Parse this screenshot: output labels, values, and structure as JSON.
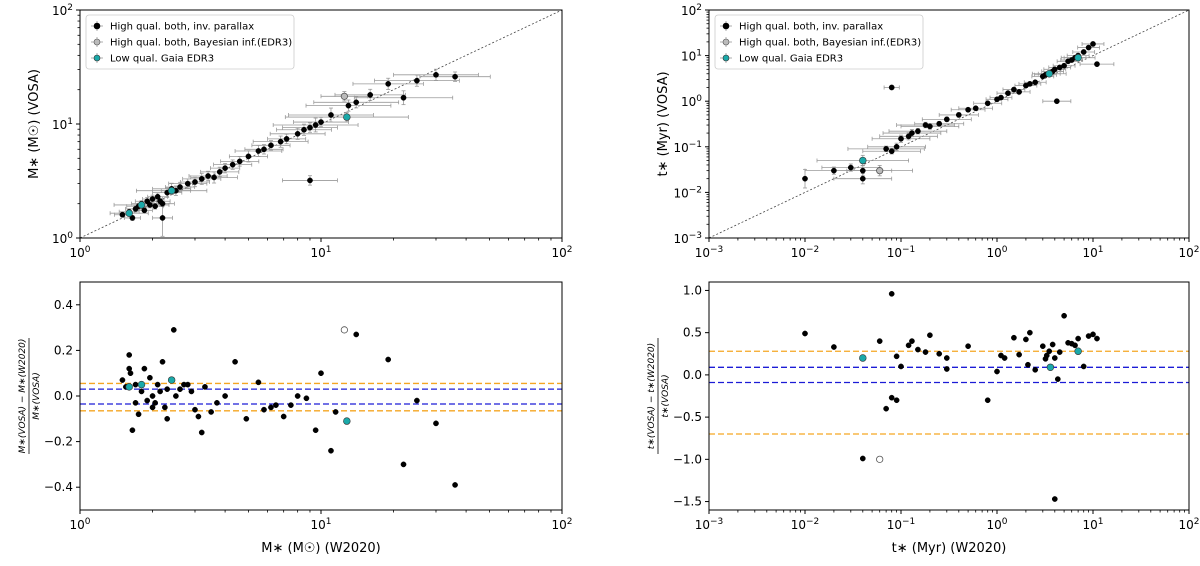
{
  "colors": {
    "high_qual": "#000000",
    "bayesian_face": "#bbbbbb",
    "low_qual_face": "#1aa9a9",
    "errbar": "#9a9a9a",
    "orange": "#f5a623",
    "blue": "#1c1cd6",
    "diagonal": "#444444"
  },
  "chart_data": [
    {
      "id": "mass_vs",
      "type": "scatter",
      "xscale": "log",
      "yscale": "log",
      "xlim": [
        1,
        100
      ],
      "ylim": [
        1,
        100
      ],
      "xlabel": "",
      "ylabel": "M∗ (M☉) (VOSA)",
      "xticklabels": [
        "10^0",
        "10^1",
        "10^2"
      ],
      "yticklabels": [
        "10^0",
        "10^1",
        "10^2"
      ],
      "diagonal": true,
      "legend": {
        "position": "top-left",
        "entries": [
          {
            "label": "High qual. both, inv. parallax",
            "marker": "filled-black"
          },
          {
            "label": "High qual. both, Bayesian inf.(EDR3)",
            "marker": "open-grey"
          },
          {
            "label": "Low qual. Gaia EDR3",
            "marker": "filled-teal"
          }
        ]
      },
      "series": [
        {
          "name": "High qual. both, inv. parallax",
          "style": "black",
          "x": [
            1.5,
            1.6,
            1.65,
            1.7,
            1.75,
            1.8,
            1.85,
            1.9,
            1.95,
            2.0,
            2.05,
            2.1,
            2.15,
            2.2,
            2.3,
            2.4,
            2.5,
            2.6,
            2.8,
            3.0,
            3.2,
            3.4,
            3.6,
            3.8,
            4.0,
            4.3,
            4.6,
            5.0,
            5.5,
            5.8,
            6.2,
            6.8,
            7.2,
            8.0,
            8.5,
            9.0,
            9.5,
            10.0,
            11.0,
            13.0,
            14.0,
            16.0,
            19.0,
            22.0,
            25.0,
            30.0,
            36.0,
            9.0,
            2.2
          ],
          "y": [
            1.6,
            1.7,
            1.5,
            1.8,
            1.9,
            2.0,
            1.75,
            2.1,
            1.95,
            2.2,
            1.9,
            2.3,
            2.1,
            2.0,
            2.5,
            2.7,
            2.6,
            2.8,
            3.0,
            3.1,
            3.3,
            3.5,
            3.4,
            3.8,
            4.1,
            4.4,
            4.7,
            5.2,
            5.8,
            6.0,
            6.5,
            7.0,
            7.4,
            8.2,
            8.9,
            9.3,
            9.8,
            10.4,
            12.0,
            14.5,
            15.5,
            18.0,
            22.5,
            17.0,
            24.0,
            27.0,
            26.0,
            3.2,
            1.5
          ],
          "xerr_factor": [
            1.08,
            1.1,
            1.08,
            1.1,
            1.12,
            1.1,
            1.08,
            1.12,
            1.1,
            1.1,
            1.08,
            1.1,
            1.1,
            1.12,
            1.15,
            1.2,
            1.15,
            1.15,
            1.2,
            1.15,
            1.2,
            1.2,
            1.25,
            1.2,
            1.15,
            1.2,
            1.2,
            1.2,
            1.25,
            1.2,
            1.2,
            1.3,
            1.2,
            1.3,
            1.3,
            1.3,
            1.5,
            1.3,
            1.5,
            1.5,
            1.5,
            1.4,
            1.4,
            1.6,
            1.5,
            1.5,
            1.4,
            1.3,
            1.1
          ],
          "yerr_factor": [
            1.05,
            1.06,
            1.05,
            1.06,
            1.06,
            1.06,
            1.05,
            1.08,
            1.06,
            1.08,
            1.06,
            1.08,
            1.06,
            1.06,
            1.1,
            1.12,
            1.1,
            1.1,
            1.1,
            1.1,
            1.12,
            1.1,
            1.12,
            1.1,
            1.1,
            1.1,
            1.1,
            1.12,
            1.12,
            1.1,
            1.1,
            1.12,
            1.1,
            1.12,
            1.12,
            1.1,
            1.15,
            1.1,
            1.15,
            1.12,
            1.12,
            1.12,
            1.12,
            1.15,
            1.12,
            1.12,
            1.1,
            1.1,
            1.45
          ]
        },
        {
          "name": "High qual. both, Bayesian inf.(EDR3)",
          "style": "open",
          "x": [
            12.5
          ],
          "y": [
            17.5
          ],
          "xerr_factor": [
            1.25
          ],
          "yerr_factor": [
            1.1
          ]
        },
        {
          "name": "Low qual. Gaia EDR3",
          "style": "teal",
          "x": [
            1.6,
            1.8,
            2.4,
            12.8
          ],
          "y": [
            1.65,
            1.95,
            2.6,
            11.5
          ],
          "xerr_factor": [
            1.2,
            1.3,
            1.4,
            1.8
          ],
          "yerr_factor": [
            1.05,
            1.06,
            1.08,
            1.1
          ]
        }
      ]
    },
    {
      "id": "age_vs",
      "type": "scatter",
      "xscale": "log",
      "yscale": "log",
      "xlim": [
        0.001,
        100
      ],
      "ylim": [
        0.001,
        100
      ],
      "xlabel": "",
      "ylabel": "t∗ (Myr) (VOSA)",
      "xticklabels": [
        "10^-3",
        "10^-2",
        "10^-1",
        "10^0",
        "10^1",
        "10^2"
      ],
      "yticklabels": [
        "10^-3",
        "10^-2",
        "10^-1",
        "10^0",
        "10^1",
        "10^2"
      ],
      "diagonal": true,
      "legend": {
        "position": "top-left",
        "entries": [
          {
            "label": "High qual. both, inv. parallax",
            "marker": "filled-black"
          },
          {
            "label": "High qual. both, Bayesian inf.(EDR3)",
            "marker": "open-grey"
          },
          {
            "label": "Low qual. Gaia EDR3",
            "marker": "filled-teal"
          }
        ]
      },
      "series": [
        {
          "name": "High qual. both, inv. parallax",
          "style": "black",
          "x": [
            0.01,
            0.02,
            0.03,
            0.04,
            0.07,
            0.08,
            0.09,
            0.1,
            0.12,
            0.13,
            0.15,
            0.18,
            0.2,
            0.25,
            0.3,
            0.4,
            0.5,
            0.6,
            0.8,
            1.0,
            1.1,
            1.3,
            1.5,
            1.7,
            2.0,
            2.2,
            2.5,
            3.0,
            3.2,
            3.5,
            3.8,
            4.0,
            4.5,
            5.0,
            5.5,
            6.0,
            6.5,
            7.0,
            8.0,
            9.0,
            10.0,
            11.0,
            0.08,
            4.2,
            0.04
          ],
          "y": [
            0.02,
            0.03,
            0.035,
            0.02,
            0.09,
            0.08,
            0.1,
            0.15,
            0.17,
            0.2,
            0.22,
            0.3,
            0.28,
            0.32,
            0.4,
            0.5,
            0.65,
            0.7,
            0.9,
            1.1,
            1.2,
            1.5,
            1.8,
            1.6,
            2.2,
            2.4,
            2.6,
            3.5,
            3.8,
            4.0,
            4.5,
            5.0,
            5.5,
            6.0,
            7.5,
            8.0,
            9.0,
            10.0,
            12.0,
            15.0,
            18.0,
            6.5,
            2.0,
            1.0,
            0.03
          ],
          "xerr_factor": [
            1,
            2,
            2,
            2,
            2.5,
            2,
            2,
            2,
            2,
            2,
            2,
            2,
            2,
            1.8,
            1.8,
            1.6,
            1.5,
            1.5,
            1.4,
            1.3,
            1.3,
            1.3,
            1.3,
            1.3,
            1.3,
            1.3,
            1.3,
            1.3,
            1.3,
            1.3,
            1.3,
            1.3,
            1.3,
            1.3,
            1.3,
            1.3,
            1.3,
            1.3,
            1.3,
            1.3,
            1.3,
            1.5,
            1.2,
            1.4,
            2
          ],
          "yerr_factor": [
            1.6,
            1.2,
            1.2,
            1.3,
            1.15,
            1.15,
            1.2,
            1.2,
            1.2,
            1.2,
            1.15,
            1.15,
            1.15,
            1.12,
            1.12,
            1.12,
            1.1,
            1.1,
            1.1,
            1.1,
            1.1,
            1.1,
            1.1,
            1.1,
            1.1,
            1.1,
            1.1,
            1.1,
            1.1,
            1.1,
            1.1,
            1.1,
            1.1,
            1.1,
            1.1,
            1.1,
            1.1,
            1.1,
            1.1,
            1.1,
            1.1,
            1.1,
            1.1,
            1.1,
            1.3
          ]
        },
        {
          "name": "High qual. both, Bayesian inf.(EDR3)",
          "style": "open",
          "x": [
            0.06
          ],
          "y": [
            0.03
          ],
          "xerr_factor": [
            2.2
          ],
          "yerr_factor": [
            1.3
          ]
        },
        {
          "name": "Low qual. Gaia EDR3",
          "style": "teal",
          "x": [
            0.04,
            3.5,
            7.0
          ],
          "y": [
            0.05,
            4.0,
            9.0
          ],
          "xerr_factor": [
            3.0,
            1.5,
            1.5
          ],
          "yerr_factor": [
            1.3,
            1.1,
            1.1
          ]
        }
      ]
    },
    {
      "id": "mass_residual",
      "type": "scatter",
      "xscale": "log",
      "yscale": "linear",
      "xlim": [
        1,
        100
      ],
      "ylim": [
        -0.5,
        0.5
      ],
      "xlabel": "M∗ (M☉) (W2020)",
      "ylabel_numerator": "M∗(VOSA) − M∗(W2020)",
      "ylabel_denominator": "M∗(VOSA)",
      "xticklabels": [
        "10^0",
        "10^1",
        "10^2"
      ],
      "yticks": [
        -0.4,
        -0.2,
        0.0,
        0.2,
        0.4
      ],
      "yticklabels": [
        "−0.4",
        "−0.2",
        "0.0",
        "0.2",
        "0.4"
      ],
      "hlines": [
        {
          "y": 0.055,
          "color": "orange"
        },
        {
          "y": -0.065,
          "color": "orange"
        },
        {
          "y": 0.03,
          "color": "blue"
        },
        {
          "y": -0.035,
          "color": "blue"
        }
      ],
      "series": [
        {
          "name": "High qual. both, inv. parallax",
          "style": "black",
          "x": [
            1.5,
            1.55,
            1.6,
            1.62,
            1.65,
            1.7,
            1.75,
            1.8,
            1.85,
            1.9,
            1.95,
            2.0,
            2.05,
            2.1,
            2.15,
            2.2,
            2.25,
            2.3,
            2.4,
            2.45,
            2.5,
            2.6,
            2.7,
            2.8,
            2.9,
            3.0,
            3.1,
            3.2,
            3.3,
            3.5,
            3.7,
            4.0,
            4.4,
            4.9,
            5.5,
            5.8,
            6.2,
            6.5,
            7.0,
            7.5,
            8.0,
            8.7,
            9.5,
            10.0,
            11.0,
            11.5,
            14.0,
            19.0,
            22.0,
            25.0,
            30.0,
            36.0,
            1.6,
            1.7,
            2.0,
            2.3
          ],
          "y": [
            0.07,
            0.04,
            0.18,
            0.1,
            -0.15,
            0.05,
            -0.08,
            0.02,
            0.12,
            -0.02,
            0.08,
            0.0,
            -0.03,
            0.05,
            0.02,
            0.15,
            -0.05,
            0.03,
            0.07,
            0.29,
            0.0,
            0.03,
            0.05,
            0.05,
            0.02,
            -0.06,
            -0.09,
            -0.16,
            0.04,
            -0.07,
            -0.03,
            0.0,
            0.15,
            -0.1,
            0.06,
            -0.06,
            -0.05,
            -0.04,
            -0.09,
            -0.04,
            0.0,
            -0.01,
            -0.15,
            0.1,
            -0.24,
            -0.07,
            0.27,
            0.16,
            -0.3,
            -0.02,
            -0.12,
            -0.39,
            0.12,
            -0.03,
            -0.05,
            -0.1
          ]
        },
        {
          "name": "High qual. both, Bayesian inf.(EDR3)",
          "style": "open",
          "x": [
            12.5
          ],
          "y": [
            0.29
          ]
        },
        {
          "name": "Low qual. Gaia EDR3",
          "style": "teal",
          "x": [
            1.6,
            1.8,
            2.4,
            12.8
          ],
          "y": [
            0.04,
            0.05,
            0.07,
            -0.11
          ]
        }
      ]
    },
    {
      "id": "age_residual",
      "type": "scatter",
      "xscale": "log",
      "yscale": "linear",
      "xlim": [
        0.001,
        100
      ],
      "ylim": [
        -1.6,
        1.1
      ],
      "xlabel": "t∗ (Myr) (W2020)",
      "ylabel_numerator": "t∗(VOSA) − t∗(W2020)",
      "ylabel_denominator": "t∗(VOSA)",
      "xticklabels": [
        "10^-3",
        "10^-2",
        "10^-1",
        "10^0",
        "10^1",
        "10^2"
      ],
      "yticks": [
        -1.5,
        -1.0,
        -0.5,
        0.0,
        0.5,
        1.0
      ],
      "yticklabels": [
        "−1.5",
        "−1.0",
        "−0.5",
        "0.0",
        "0.5",
        "1.0"
      ],
      "hlines": [
        {
          "y": 0.28,
          "color": "orange"
        },
        {
          "y": -0.7,
          "color": "orange"
        },
        {
          "y": 0.09,
          "color": "blue"
        },
        {
          "y": -0.09,
          "color": "blue"
        }
      ],
      "series": [
        {
          "name": "High qual. both, inv. parallax",
          "style": "black",
          "x": [
            0.01,
            0.02,
            0.04,
            0.06,
            0.07,
            0.08,
            0.09,
            0.1,
            0.12,
            0.13,
            0.15,
            0.18,
            0.2,
            0.25,
            0.3,
            0.5,
            0.8,
            1.0,
            1.1,
            1.2,
            1.5,
            1.7,
            2.0,
            2.2,
            2.5,
            3.0,
            3.2,
            3.5,
            3.8,
            4.0,
            4.5,
            5.0,
            5.5,
            6.0,
            6.5,
            7.0,
            8.0,
            9.0,
            10.0,
            11.0,
            0.08,
            0.09,
            0.3,
            2.1,
            3.3,
            4.3,
            0.04,
            4.0
          ],
          "y": [
            0.49,
            0.33,
            -0.99,
            0.4,
            -0.4,
            0.96,
            0.22,
            0.1,
            0.35,
            0.4,
            0.3,
            0.27,
            0.47,
            0.25,
            0.07,
            0.34,
            -0.3,
            0.04,
            0.23,
            0.2,
            0.44,
            0.24,
            0.42,
            0.5,
            0.06,
            0.34,
            0.19,
            0.28,
            0.36,
            0.2,
            0.27,
            0.7,
            0.38,
            0.37,
            0.35,
            0.43,
            0.1,
            0.46,
            0.48,
            0.43,
            -0.27,
            -0.3,
            0.2,
            0.12,
            0.23,
            -0.05,
            0.2,
            -1.47
          ]
        },
        {
          "name": "High qual. both, Bayesian inf.(EDR3)",
          "style": "open",
          "x": [
            0.06
          ],
          "y": [
            -1.0
          ]
        },
        {
          "name": "Low qual. Gaia EDR3",
          "style": "teal",
          "x": [
            0.04,
            3.6,
            7.0
          ],
          "y": [
            0.2,
            0.09,
            0.28
          ]
        }
      ]
    }
  ]
}
